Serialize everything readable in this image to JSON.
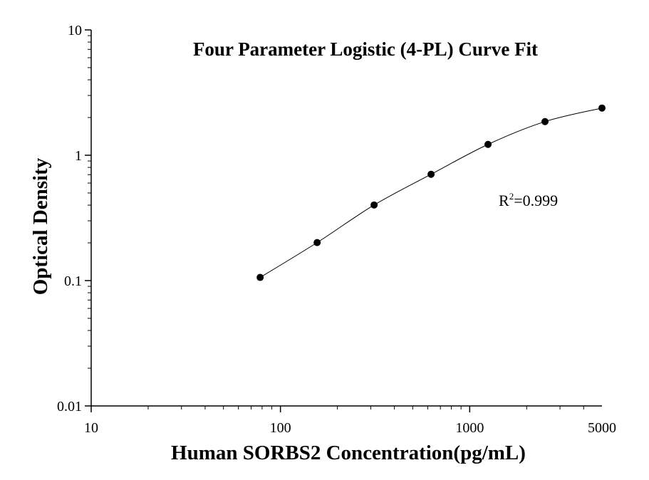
{
  "chart_data": {
    "type": "scatter",
    "title": "Four Parameter Logistic (4-PL) Curve Fit",
    "xlabel": "Human SORBS2 Concentration(pg/mL)",
    "ylabel": "Optical Density",
    "x_scale": "log",
    "y_scale": "log",
    "xlim": [
      10,
      5000
    ],
    "ylim": [
      0.01,
      10
    ],
    "x_ticks": [
      {
        "value": 10,
        "label": "10"
      },
      {
        "value": 100,
        "label": "100"
      },
      {
        "value": 1000,
        "label": "1000"
      },
      {
        "value": 5000,
        "label": "5000"
      }
    ],
    "y_ticks": [
      {
        "value": 0.01,
        "label": "0.01"
      },
      {
        "value": 0.1,
        "label": "0.1"
      },
      {
        "value": 1,
        "label": "1"
      },
      {
        "value": 10,
        "label": "10"
      }
    ],
    "grid": false,
    "points": [
      {
        "x": 78.125,
        "y": 0.106
      },
      {
        "x": 156.25,
        "y": 0.201
      },
      {
        "x": 312.5,
        "y": 0.401
      },
      {
        "x": 625,
        "y": 0.705
      },
      {
        "x": 1250,
        "y": 1.221
      },
      {
        "x": 2500,
        "y": 1.856
      },
      {
        "x": 5000,
        "y": 2.38
      }
    ],
    "annotation": {
      "base": "R",
      "sup": "2",
      "rest": "=0.999"
    }
  }
}
